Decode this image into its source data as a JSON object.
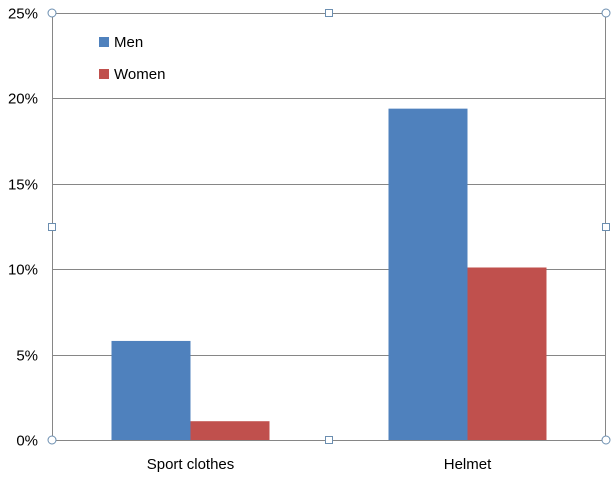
{
  "chart_data": {
    "type": "bar",
    "title": "",
    "xlabel": "",
    "ylabel": "",
    "categories": [
      "Sport clothes",
      "Helmet"
    ],
    "series": [
      {
        "name": "Men",
        "color": "#4F81BD",
        "values": [
          5.8,
          19.4
        ]
      },
      {
        "name": "Women",
        "color": "#C0504D",
        "values": [
          1.1,
          10.1
        ]
      }
    ],
    "ylim": [
      0,
      25
    ],
    "yticks": [
      0,
      5,
      10,
      15,
      20,
      25
    ],
    "ytick_labels": [
      "0%",
      "5%",
      "10%",
      "15%",
      "20%",
      "25%"
    ],
    "value_unit": "%",
    "grid": true,
    "legend_position": "top-left"
  },
  "colors": {
    "gridline": "#868686",
    "selection_handle": "#6B8EB0"
  }
}
